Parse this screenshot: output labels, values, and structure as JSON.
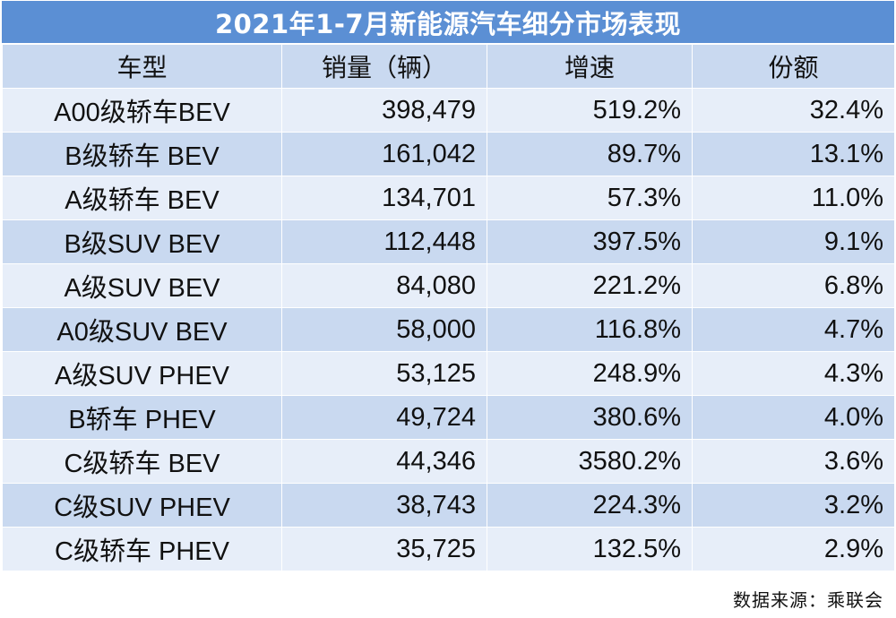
{
  "title": "2021年1-7月新能源汽车细分市场表现",
  "headers": [
    "车型",
    "销量（辆）",
    "增速",
    "份额"
  ],
  "rows": [
    {
      "type": "A00级轿车BEV",
      "sales": "398,479",
      "growth": "519.2%",
      "share": "32.4%"
    },
    {
      "type": "B级轿车 BEV",
      "sales": "161,042",
      "growth": "89.7%",
      "share": "13.1%"
    },
    {
      "type": "A级轿车 BEV",
      "sales": "134,701",
      "growth": "57.3%",
      "share": "11.0%"
    },
    {
      "type": "B级SUV BEV",
      "sales": "112,448",
      "growth": "397.5%",
      "share": "9.1%"
    },
    {
      "type": "A级SUV BEV",
      "sales": "84,080",
      "growth": "221.2%",
      "share": "6.8%"
    },
    {
      "type": "A0级SUV BEV",
      "sales": "58,000",
      "growth": "116.8%",
      "share": "4.7%"
    },
    {
      "type": "A级SUV PHEV",
      "sales": "53,125",
      "growth": "248.9%",
      "share": "4.3%"
    },
    {
      "type": "B轿车 PHEV",
      "sales": "49,724",
      "growth": "380.6%",
      "share": "4.0%"
    },
    {
      "type": "C级轿车 BEV",
      "sales": "44,346",
      "growth": "3580.2%",
      "share": "3.6%"
    },
    {
      "type": "C级SUV PHEV",
      "sales": "38,743",
      "growth": "224.3%",
      "share": "3.2%"
    },
    {
      "type": "C级轿车 PHEV",
      "sales": "35,725",
      "growth": "132.5%",
      "share": "2.9%"
    }
  ],
  "source": "数据来源：乘联会",
  "colors": {
    "title_bg": "#5b8fd4",
    "header_bg": "#c9d9f0",
    "row_light": "#e7eef9",
    "row_dark": "#c9d9f0"
  }
}
